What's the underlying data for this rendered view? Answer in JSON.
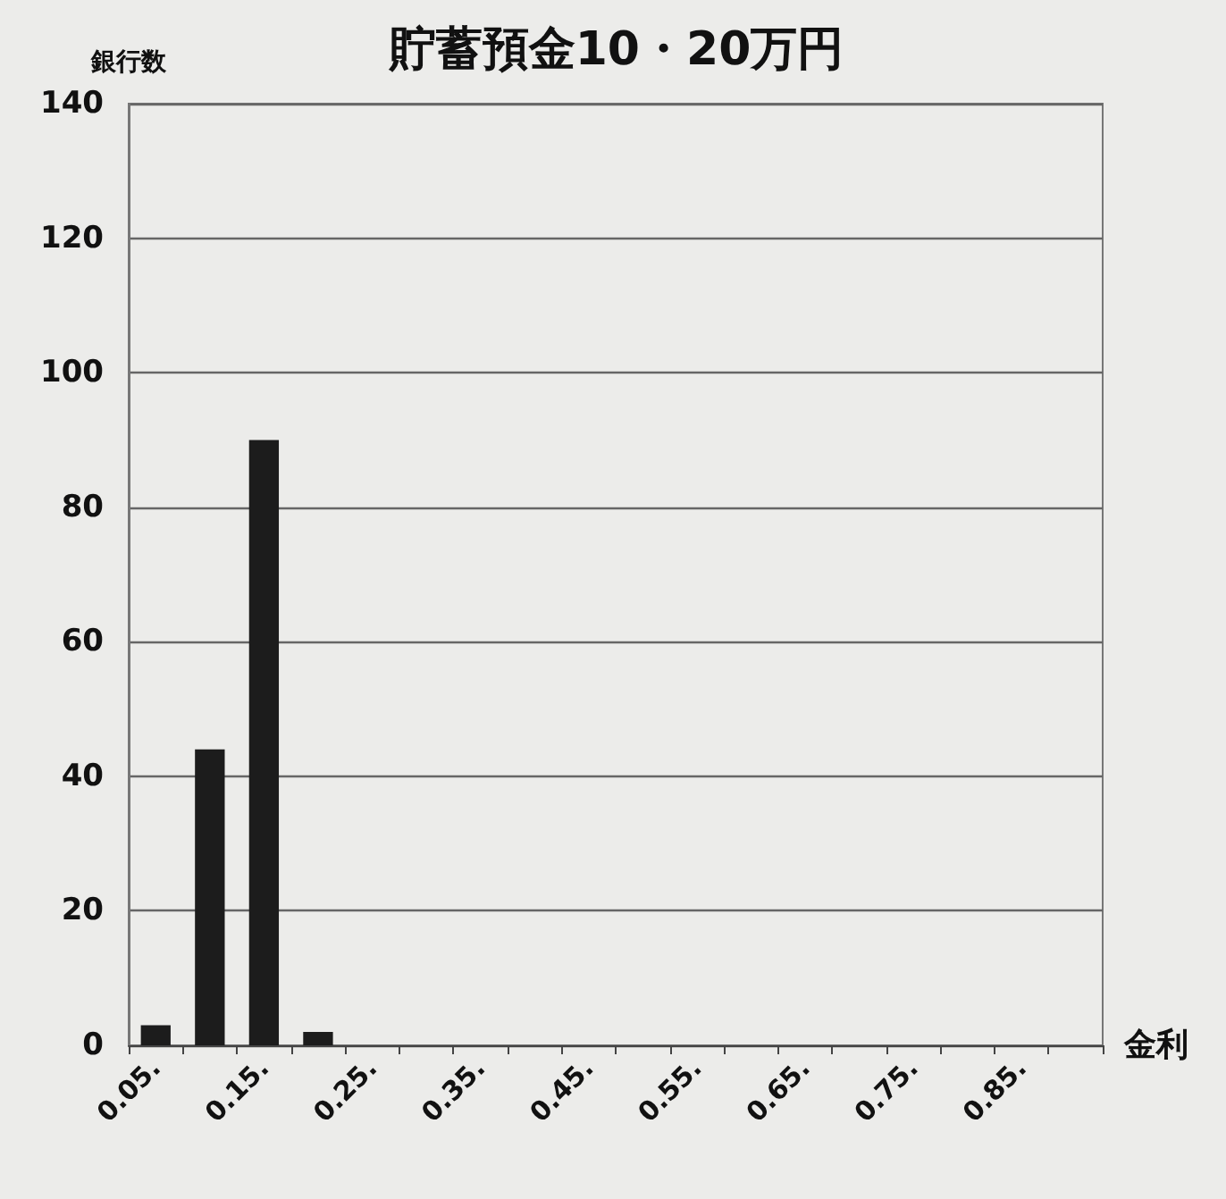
{
  "chart_data": {
    "type": "bar",
    "title": "貯蓄預金10・20万円",
    "ylabel": "銀行数",
    "xlabel": "金利",
    "categories": [
      "0.05.",
      null,
      "0.15.",
      null,
      "0.25.",
      null,
      "0.35.",
      null,
      "0.45.",
      null,
      "0.55.",
      null,
      "0.65.",
      null,
      "0.75.",
      null,
      "0.85.",
      null
    ],
    "values": [
      3,
      44,
      90,
      2,
      0,
      0,
      0,
      0,
      0,
      0,
      0,
      0,
      0,
      0,
      0,
      0,
      0,
      0
    ],
    "color": "#1c1c1c",
    "ylim": [
      0,
      140
    ],
    "yticks": [
      0,
      20,
      40,
      60,
      80,
      100,
      120,
      140
    ],
    "grid": "y"
  }
}
